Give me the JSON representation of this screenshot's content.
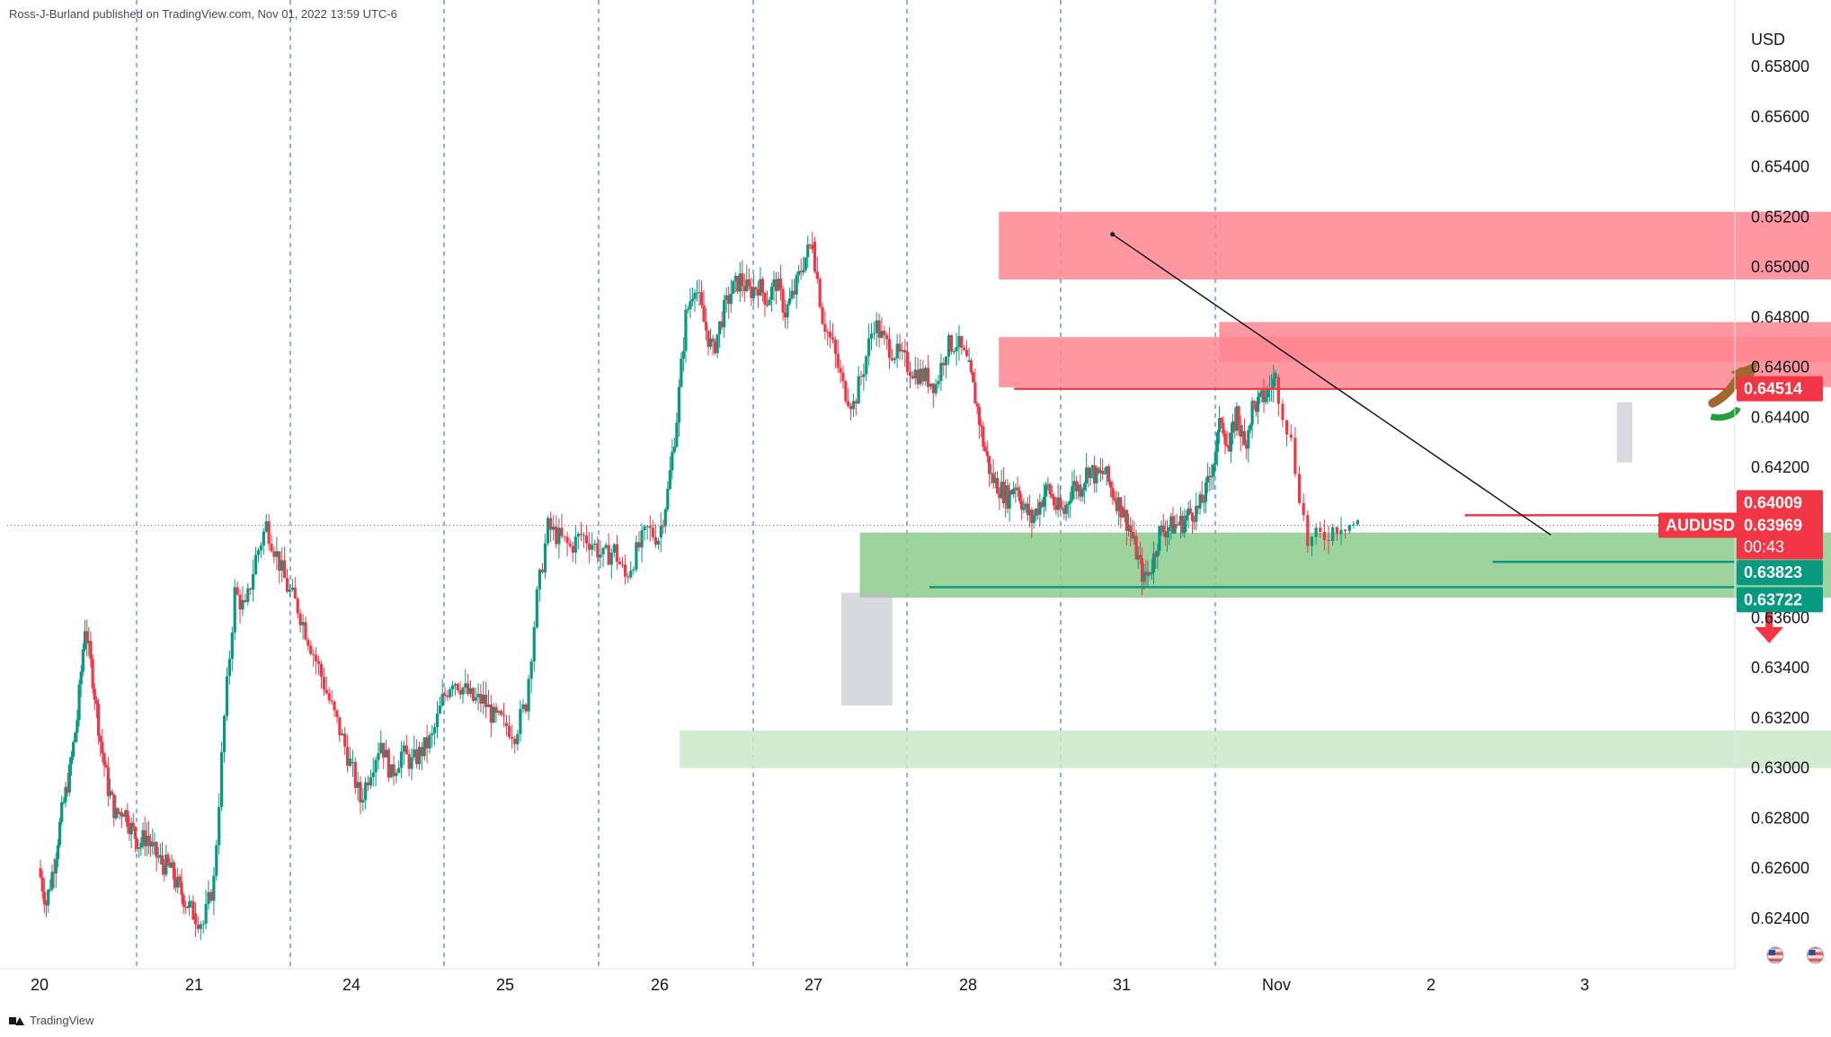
{
  "attribution": "Ross-J-Burland published on TradingView.com, Nov 01, 2022 13:59 UTC-6",
  "footer_brand": "TradingView",
  "chart_data": {
    "type": "candlestick",
    "symbol": "AUDUSD",
    "currency_label": "USD",
    "ylim": [
      0.623,
      0.66
    ],
    "y_ticks": [
      "0.65800",
      "0.65600",
      "0.65400",
      "0.65200",
      "0.65000",
      "0.64800",
      "0.64600",
      "0.64400",
      "0.64200",
      "0.63600",
      "0.63400",
      "0.63200",
      "0.63000",
      "0.62800",
      "0.62600",
      "0.62400"
    ],
    "x_ticks": [
      "20",
      "21",
      "24",
      "25",
      "26",
      "27",
      "28",
      "31",
      "Nov",
      "2",
      "3"
    ],
    "session_separators": 8,
    "price_labels": [
      {
        "text": "0.64514",
        "value": 0.64514,
        "color": "#f23645"
      },
      {
        "text": "0.64009",
        "value": 0.64009,
        "color": "#f23645"
      },
      {
        "text": "AUDUSD",
        "value": 0.63969,
        "color": "#f23645"
      },
      {
        "text": "0.63969",
        "value": 0.63969,
        "color": "#f23645"
      },
      {
        "text": "00:43",
        "value": 0.63969,
        "color": "#f23645"
      },
      {
        "text": "0.63823",
        "value": 0.63823,
        "color": "#089981"
      },
      {
        "text": "0.63722",
        "value": 0.63722,
        "color": "#089981"
      }
    ],
    "last_price": 0.63969,
    "zones": [
      {
        "kind": "resistance",
        "x0": 26.2,
        "x1": 32.05,
        "y0": 0.6495,
        "y1": 0.6522,
        "color": "#ff8591"
      },
      {
        "kind": "resistance",
        "x0": 27.63,
        "x1": 31.95,
        "y0": 0.6462,
        "y1": 0.6478,
        "color": "#ff8591"
      },
      {
        "kind": "resistance",
        "x0": 26.2,
        "x1": 31.97,
        "y0": 0.6452,
        "y1": 0.6472,
        "color": "#ff8591"
      },
      {
        "kind": "support",
        "x0": 25.3,
        "x1": 31.75,
        "y0": 0.6368,
        "y1": 0.6394,
        "color": "#8ccc8c"
      },
      {
        "kind": "support",
        "x0": 24.13,
        "x1": 32.1,
        "y0": 0.63,
        "y1": 0.6315,
        "color": "#cae9c9"
      }
    ],
    "gray_boxes": [
      {
        "x0": 25.18,
        "x1": 25.51,
        "y0": 0.6325,
        "y1": 0.637
      },
      {
        "x0": 30.21,
        "x1": 30.31,
        "y0": 0.6422,
        "y1": 0.6446
      }
    ],
    "hlines": [
      {
        "value": 0.64514,
        "x0": 26.3,
        "color": "#f23645"
      },
      {
        "value": 0.64009,
        "x0": 29.22,
        "color": "#f23645"
      },
      {
        "value": 0.63823,
        "x0": 29.4,
        "color": "#089981"
      },
      {
        "value": 0.63722,
        "x0": 25.75,
        "color": "#089981"
      }
    ],
    "trendline": {
      "x0": 26.94,
      "y0": 0.6513,
      "x1": 29.78,
      "y1": 0.6393
    },
    "arrows": [
      {
        "direction": "up",
        "x": 30.95,
        "y": 0.646,
        "color": "#a0672f"
      },
      {
        "direction": "down",
        "x": 31.2,
        "y": 0.6357,
        "color": "#f23645"
      }
    ],
    "event_markers": [
      {
        "x": 31.24,
        "flag": "us"
      },
      {
        "x": 31.5,
        "flag": "us"
      },
      {
        "x": 31.77,
        "flag": "au"
      },
      {
        "x": 32.25,
        "flag": "us"
      },
      {
        "x": 32.35,
        "flag": "us"
      },
      {
        "x": 32.75,
        "flag": "au"
      }
    ],
    "bull_color": "#089981",
    "bear_color": "#f23645",
    "series": [
      {
        "day": "20",
        "path": [
          0.626,
          0.6246,
          0.6262,
          0.6282,
          0.6298,
          0.632,
          0.6357,
          0.6336,
          0.6311,
          0.6292,
          0.6281,
          0.6284,
          0.6276,
          0.627,
          0.6273,
          0.6266,
          0.6262,
          0.626,
          0.6253,
          0.6247,
          0.6242
        ]
      },
      {
        "day": "21",
        "path": [
          0.6242,
          0.6238,
          0.6255,
          0.632,
          0.637,
          0.6363,
          0.6384,
          0.6397,
          0.6385,
          0.6372,
          0.6364,
          0.6352,
          0.634,
          0.6327,
          0.6315,
          0.6302
        ]
      },
      {
        "day": "24",
        "path": [
          0.6302,
          0.6287,
          0.63,
          0.6311,
          0.6297,
          0.6306,
          0.6302,
          0.6307,
          0.6312,
          0.6327,
          0.6336,
          0.6332,
          0.6327,
          0.6327,
          0.632,
          0.6318
        ]
      },
      {
        "day": "25",
        "path": [
          0.6318,
          0.6314,
          0.6326,
          0.6368,
          0.6396,
          0.6392,
          0.6388,
          0.6393,
          0.639,
          0.6384,
          0.6387,
          0.6376,
          0.6386,
          0.6395,
          0.6392
        ]
      },
      {
        "day": "26",
        "path": [
          0.6392,
          0.641,
          0.644,
          0.648,
          0.6494,
          0.6478,
          0.6466,
          0.648,
          0.649,
          0.6495,
          0.649,
          0.6493,
          0.6487,
          0.6494,
          0.6482,
          0.649,
          0.6502,
          0.651
        ]
      },
      {
        "day": "27",
        "path": [
          0.651,
          0.648,
          0.6468,
          0.6452,
          0.6445,
          0.646,
          0.6478,
          0.647,
          0.6466,
          0.6462,
          0.6458,
          0.6456,
          0.6453,
          0.6468,
          0.647,
          0.6462
        ]
      },
      {
        "day": "28",
        "path": [
          0.6462,
          0.6448,
          0.643,
          0.6416,
          0.6412,
          0.6408,
          0.6414,
          0.6404,
          0.6399,
          0.6406,
          0.6412,
          0.6404,
          0.6402,
          0.6413,
          0.6412,
          0.642,
          0.6416,
          0.6418,
          0.641,
          0.6404
        ]
      },
      {
        "day": "31",
        "path": [
          0.6404,
          0.6397,
          0.6386,
          0.6375,
          0.6381,
          0.6394,
          0.6396,
          0.6397,
          0.6398,
          0.6402,
          0.6403,
          0.641,
          0.6423,
          0.644,
          0.6426,
          0.6442,
          0.6428,
          0.6444,
          0.6446,
          0.645,
          0.6456
        ]
      },
      {
        "day": "Nov",
        "path": [
          0.6456,
          0.643,
          0.639,
          0.6393,
          0.6398,
          0.6397
        ]
      }
    ]
  }
}
